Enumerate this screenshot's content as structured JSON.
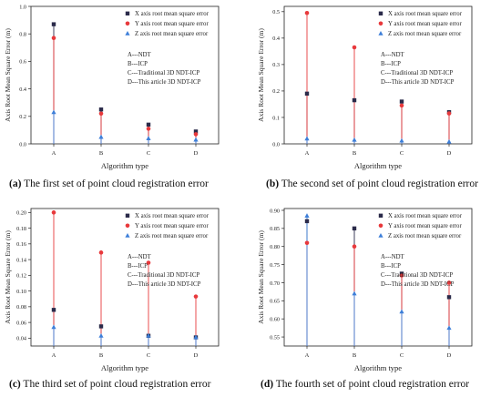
{
  "panels": [
    {
      "caption_letter": "(a)",
      "caption_text": " The first set of point cloud registration error"
    },
    {
      "caption_letter": "(b)",
      "caption_text": " The second set of point cloud registration error"
    },
    {
      "caption_letter": "(c)",
      "caption_text": " The third set of point cloud registration error"
    },
    {
      "caption_letter": "(d)",
      "caption_text": " The fourth set of point cloud registration error"
    }
  ],
  "colors": {
    "x": "#2b2b4a",
    "y": "#e8393c",
    "z": "#3d7fd9"
  },
  "chart_data": [
    {
      "type": "scatter",
      "xlabel": "Algorithm type",
      "ylabel": "Axis Root Mean Square Error (m)",
      "categories": [
        "A",
        "B",
        "C",
        "D"
      ],
      "ylim": [
        0,
        1.0
      ],
      "yticks": [
        0.0,
        0.2,
        0.4,
        0.6,
        0.8,
        1.0
      ],
      "ytick_labels": [
        "0.0",
        "0.2",
        "0.4",
        "0.6",
        "0.8",
        "1.0"
      ],
      "legend": [
        "X axis root mean square error",
        "Y axis root mean square error",
        "Z axis root mean square error"
      ],
      "annotation": [
        "A---NDT",
        "B---ICP",
        "C---Traditional 3D NDT-ICP",
        "D---This article 3D NDT-ICP"
      ],
      "series": [
        {
          "name": "X axis root mean square error",
          "values": [
            0.87,
            0.25,
            0.14,
            0.09
          ]
        },
        {
          "name": "Y axis root mean square error",
          "values": [
            0.77,
            0.22,
            0.11,
            0.07
          ]
        },
        {
          "name": "Z axis root mean square error",
          "values": [
            0.23,
            0.05,
            0.04,
            0.03
          ]
        }
      ]
    },
    {
      "type": "scatter",
      "xlabel": "Algorithm type",
      "ylabel": "Axis Root Mean Square Error (m)",
      "categories": [
        "A",
        "B",
        "C",
        "D"
      ],
      "ylim": [
        0,
        0.52
      ],
      "yticks": [
        0.0,
        0.1,
        0.2,
        0.3,
        0.4,
        0.5
      ],
      "ytick_labels": [
        "0.0",
        "0.1",
        "0.2",
        "0.3",
        "0.4",
        "0.5"
      ],
      "legend": [
        "X axis root mean square error",
        "Y axis root mean square error",
        "Z axis root mean square error"
      ],
      "annotation": [
        "A---NDT",
        "B---ICP",
        "C---Traditional 3D NDT-ICP",
        "D---This article 3D NDT-ICP"
      ],
      "series": [
        {
          "name": "X axis root mean square error",
          "values": [
            0.19,
            0.165,
            0.16,
            0.12
          ]
        },
        {
          "name": "Y axis root mean square error",
          "values": [
            0.495,
            0.365,
            0.145,
            0.115
          ]
        },
        {
          "name": "Z axis root mean square error",
          "values": [
            0.02,
            0.015,
            0.012,
            0.008
          ]
        }
      ]
    },
    {
      "type": "scatter",
      "xlabel": "Algorithm type",
      "ylabel": "Axis Root Mean Square Error (m)",
      "categories": [
        "A",
        "B",
        "C",
        "D"
      ],
      "ylim": [
        0.03,
        0.205
      ],
      "yticks": [
        0.04,
        0.06,
        0.08,
        0.1,
        0.12,
        0.14,
        0.16,
        0.18,
        0.2
      ],
      "ytick_labels": [
        "0.04",
        "0.06",
        "0.08",
        "0.10",
        "0.12",
        "0.14",
        "0.16",
        "0.18",
        "0.20"
      ],
      "legend": [
        "X axis root mean square error",
        "Y axis root mean square error",
        "Z axis root mean square error"
      ],
      "annotation": [
        "A---NDT",
        "B---ICP",
        "C---Traditional 3D NDT-ICP",
        "D---This article 3D NDT-ICP"
      ],
      "series": [
        {
          "name": "X axis root mean square error",
          "values": [
            0.076,
            0.055,
            0.043,
            0.041
          ]
        },
        {
          "name": "Y axis root mean square error",
          "values": [
            0.2,
            0.149,
            0.136,
            0.093
          ]
        },
        {
          "name": "Z axis root mean square error",
          "values": [
            0.054,
            0.043,
            0.043,
            0.041
          ]
        }
      ]
    },
    {
      "type": "scatter",
      "xlabel": "Algorithm type",
      "ylabel": "Axis Root Mean Square Error (m)",
      "categories": [
        "A",
        "B",
        "C",
        "D"
      ],
      "ylim": [
        0.525,
        0.905
      ],
      "yticks": [
        0.55,
        0.6,
        0.65,
        0.7,
        0.75,
        0.8,
        0.85,
        0.9
      ],
      "ytick_labels": [
        "0.55",
        "0.60",
        "0.65",
        "0.70",
        "0.75",
        "0.80",
        "0.85",
        "0.90"
      ],
      "legend": [
        "X axis root mean square error",
        "Y axis root mean square error",
        "Z axis root mean square error"
      ],
      "annotation": [
        "A---NDT",
        "B---ICP",
        "C---Traditional 3D NDT-ICP",
        "D---This article 3D NDT-ICP"
      ],
      "series": [
        {
          "name": "X axis root mean square error",
          "values": [
            0.87,
            0.85,
            0.725,
            0.66
          ]
        },
        {
          "name": "Y axis root mean square error",
          "values": [
            0.81,
            0.8,
            0.72,
            0.7
          ]
        },
        {
          "name": "Z axis root mean square error",
          "values": [
            0.885,
            0.67,
            0.62,
            0.575
          ]
        }
      ]
    }
  ]
}
